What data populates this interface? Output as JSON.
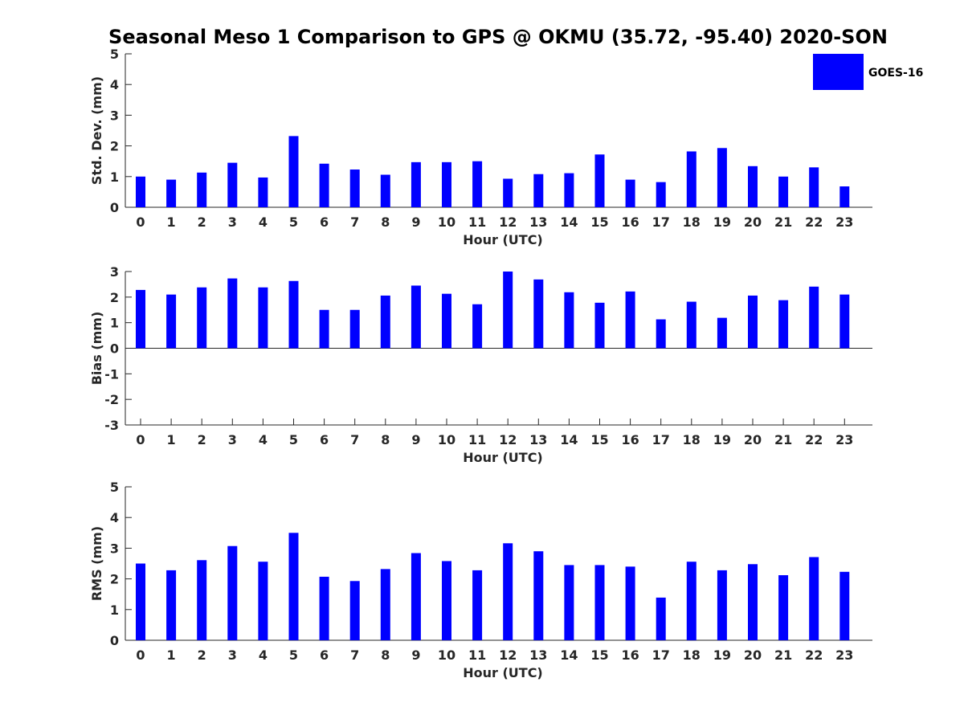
{
  "title": "Seasonal Meso 1 Comparison to GPS @ OKMU (35.72, -95.40) 2020-SON",
  "legend": {
    "label": "GOES-16",
    "color": "#0000ff"
  },
  "bar_color": "#0000ff",
  "chart_data": [
    {
      "type": "bar",
      "ylabel": "Std. Dev. (mm)",
      "xlabel": "Hour (UTC)",
      "ylim": [
        0,
        5
      ],
      "yticks": [
        0,
        1,
        2,
        3,
        4,
        5
      ],
      "categories": [
        "0",
        "1",
        "2",
        "3",
        "4",
        "5",
        "6",
        "7",
        "8",
        "9",
        "10",
        "11",
        "12",
        "13",
        "14",
        "15",
        "16",
        "17",
        "18",
        "19",
        "20",
        "21",
        "22",
        "23"
      ],
      "series": [
        {
          "name": "GOES-16",
          "values": [
            1.0,
            0.9,
            1.13,
            1.45,
            0.97,
            2.32,
            1.42,
            1.23,
            1.06,
            1.47,
            1.47,
            1.5,
            0.93,
            1.08,
            1.11,
            1.72,
            0.9,
            0.82,
            1.82,
            1.93,
            1.34,
            1.0,
            1.3,
            0.68
          ]
        }
      ],
      "grid": false
    },
    {
      "type": "bar",
      "ylabel": "Bias (mm)",
      "xlabel": "Hour (UTC)",
      "ylim": [
        -3,
        3
      ],
      "yticks": [
        -3,
        -2,
        -1,
        0,
        1,
        2,
        3
      ],
      "categories": [
        "0",
        "1",
        "2",
        "3",
        "4",
        "5",
        "6",
        "7",
        "8",
        "9",
        "10",
        "11",
        "12",
        "13",
        "14",
        "15",
        "16",
        "17",
        "18",
        "19",
        "20",
        "21",
        "22",
        "23"
      ],
      "series": [
        {
          "name": "GOES-16",
          "values": [
            2.28,
            2.1,
            2.38,
            2.73,
            2.38,
            2.63,
            1.5,
            1.5,
            2.06,
            2.45,
            2.13,
            1.72,
            3.0,
            2.69,
            2.19,
            1.78,
            2.22,
            1.13,
            1.82,
            1.19,
            2.06,
            1.88,
            2.41,
            2.1
          ]
        }
      ],
      "grid": false
    },
    {
      "type": "bar",
      "ylabel": "RMS (mm)",
      "xlabel": "Hour (UTC)",
      "ylim": [
        0,
        5
      ],
      "yticks": [
        0,
        1,
        2,
        3,
        4,
        5
      ],
      "categories": [
        "0",
        "1",
        "2",
        "3",
        "4",
        "5",
        "6",
        "7",
        "8",
        "9",
        "10",
        "11",
        "12",
        "13",
        "14",
        "15",
        "16",
        "17",
        "18",
        "19",
        "20",
        "21",
        "22",
        "23"
      ],
      "series": [
        {
          "name": "GOES-16",
          "values": [
            2.5,
            2.28,
            2.61,
            3.07,
            2.56,
            3.5,
            2.07,
            1.93,
            2.32,
            2.84,
            2.58,
            2.28,
            3.16,
            2.9,
            2.45,
            2.45,
            2.4,
            1.39,
            2.56,
            2.28,
            2.48,
            2.12,
            2.71,
            2.23
          ]
        }
      ],
      "grid": false
    }
  ]
}
